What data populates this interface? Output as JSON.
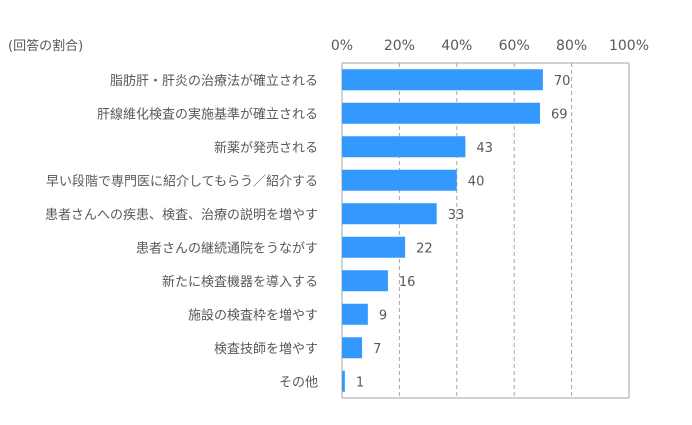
{
  "chart_data": {
    "type": "bar",
    "orientation": "horizontal",
    "unit_label": "(回答の割合)",
    "categories": [
      "脂肪肝・肝炎の治療法が確立される",
      "肝線維化検査の実施基準が確立される",
      "新薬が発売される",
      "早い段階で専門医に紹介してもらう／紹介する",
      "患者さんへの疾患、検査、治療の説明を増やす",
      "患者さんの継続通院をうながす",
      "新たに検査機器を導入する",
      "施設の検査枠を増やす",
      "検査技師を増やす",
      "その他"
    ],
    "values": [
      70,
      69,
      43,
      40,
      33,
      22,
      16,
      9,
      7,
      1
    ],
    "value_labels": [
      "70",
      "69",
      "43",
      "40",
      "33",
      "22",
      "16",
      "9",
      "7",
      "1"
    ],
    "xlim": [
      0,
      100
    ],
    "x_ticks": [
      0,
      20,
      40,
      60,
      80,
      100
    ],
    "x_tick_labels": [
      "0%",
      "20%",
      "40%",
      "60%",
      "80%",
      "100%"
    ],
    "grid": true,
    "bar_color": "#3399ff",
    "grid_color": "#a6a6a6",
    "text_color": "#595959"
  }
}
